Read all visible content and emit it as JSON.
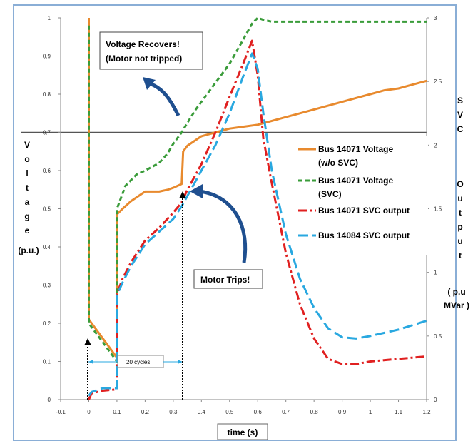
{
  "chart_data": {
    "type": "line",
    "xlabel": "time (s)",
    "ylabel_left_letters": [
      "V",
      "o",
      "l",
      "t",
      "a",
      "g",
      "e"
    ],
    "ylabel_left_unit": "(p.u.)",
    "ylabel_right_letters_1": [
      "S",
      "V",
      "C"
    ],
    "ylabel_right_letters_2": [
      "O",
      "u",
      "t",
      "p",
      "u",
      "t"
    ],
    "ylabel_right_unit_1": "( p.u",
    "ylabel_right_unit_2": "MVar )",
    "xlim": [
      -0.1,
      1.2
    ],
    "ylim_left": [
      0,
      1
    ],
    "ylim_right": [
      0,
      3
    ],
    "x_ticks": [
      "-0.1",
      "0",
      "0.1",
      "0.2",
      "0.3",
      "0.4",
      "0.5",
      "0.6",
      "0.7",
      "0.8",
      "0.9",
      "1",
      "1.1",
      "1.2"
    ],
    "y_left_ticks": [
      "0",
      "0.1",
      "0.2",
      "0.3",
      "0.4",
      "0.5",
      "0.6",
      "0.7",
      "0.8",
      "0.9",
      "1"
    ],
    "y_right_ticks": [
      "0",
      "0.5",
      "1",
      "1.5",
      "2",
      "2.5",
      "3"
    ],
    "reference_line_y": 0.7,
    "legend_position": "right",
    "series": [
      {
        "name": "Bus 14071 Voltage (w/o SVC)",
        "legend_lines": [
          "Bus 14071 Voltage",
          "(w/o SVC)"
        ],
        "axis": "left",
        "color": "#e88a2e",
        "dash": "solid",
        "x": [
          0,
          0,
          0.1,
          0.1,
          0.12,
          0.15,
          0.18,
          0.2,
          0.22,
          0.25,
          0.28,
          0.3,
          0.33,
          0.335,
          0.35,
          0.38,
          0.4,
          0.45,
          0.5,
          0.55,
          0.6,
          0.65,
          0.7,
          0.75,
          0.8,
          0.85,
          0.9,
          0.95,
          1.0,
          1.05,
          1.1,
          1.15,
          1.2
        ],
        "y": [
          1.0,
          0.21,
          0.11,
          0.485,
          0.5,
          0.52,
          0.535,
          0.545,
          0.545,
          0.545,
          0.55,
          0.555,
          0.565,
          0.65,
          0.665,
          0.68,
          0.69,
          0.7,
          0.71,
          0.715,
          0.72,
          0.73,
          0.74,
          0.75,
          0.76,
          0.77,
          0.78,
          0.79,
          0.8,
          0.81,
          0.815,
          0.825,
          0.835
        ]
      },
      {
        "name": "Bus 14071 Voltage (SVC)",
        "legend_lines": [
          "Bus 14071 Voltage",
          "(SVC)"
        ],
        "axis": "left",
        "color": "#3a9c3a",
        "dash": "dashed",
        "x": [
          0,
          0,
          0.1,
          0.1,
          0.13,
          0.17,
          0.2,
          0.25,
          0.28,
          0.3,
          0.33,
          0.35,
          0.38,
          0.4,
          0.42,
          0.45,
          0.5,
          0.55,
          0.58,
          0.6,
          0.62,
          0.65,
          0.7,
          0.8,
          0.9,
          1.0,
          1.1,
          1.2
        ],
        "y": [
          0.98,
          0.2,
          0.1,
          0.5,
          0.56,
          0.59,
          0.6,
          0.62,
          0.645,
          0.67,
          0.7,
          0.725,
          0.76,
          0.78,
          0.8,
          0.83,
          0.88,
          0.945,
          0.985,
          1.0,
          0.995,
          0.99,
          0.99,
          0.99,
          0.99,
          0.99,
          0.99,
          0.99
        ]
      },
      {
        "name": "Bus 14071 SVC output",
        "legend_lines": [
          "Bus 14071 SVC output"
        ],
        "axis": "right",
        "color": "#e02020",
        "dash": "dashdot",
        "x": [
          0,
          0.01,
          0.05,
          0.1,
          0.1,
          0.12,
          0.15,
          0.2,
          0.25,
          0.3,
          0.33,
          0.35,
          0.4,
          0.45,
          0.5,
          0.55,
          0.58,
          0.6,
          0.62,
          0.65,
          0.7,
          0.75,
          0.8,
          0.85,
          0.9,
          0.95,
          1.0,
          1.1,
          1.2
        ],
        "y": [
          0.0,
          0.05,
          0.07,
          0.08,
          0.83,
          0.95,
          1.08,
          1.25,
          1.35,
          1.47,
          1.55,
          1.65,
          1.85,
          2.1,
          2.38,
          2.65,
          2.82,
          2.55,
          2.05,
          1.7,
          1.15,
          0.75,
          0.48,
          0.32,
          0.28,
          0.28,
          0.3,
          0.32,
          0.34
        ]
      },
      {
        "name": "Bus 14084 SVC output",
        "legend_lines": [
          "Bus 14084 SVC output"
        ],
        "axis": "right",
        "color": "#29a8e0",
        "dash": "longdash",
        "x": [
          0,
          0.01,
          0.05,
          0.1,
          0.1,
          0.12,
          0.15,
          0.2,
          0.25,
          0.3,
          0.33,
          0.35,
          0.4,
          0.45,
          0.5,
          0.55,
          0.58,
          0.6,
          0.62,
          0.65,
          0.7,
          0.75,
          0.8,
          0.85,
          0.9,
          0.95,
          1.0,
          1.1,
          1.2
        ],
        "y": [
          0.03,
          0.06,
          0.09,
          0.09,
          0.82,
          0.92,
          1.05,
          1.22,
          1.32,
          1.42,
          1.52,
          1.6,
          1.8,
          2.0,
          2.25,
          2.55,
          2.72,
          2.6,
          2.25,
          1.8,
          1.3,
          0.95,
          0.72,
          0.56,
          0.49,
          0.48,
          0.5,
          0.55,
          0.62
        ]
      }
    ],
    "annotations": {
      "voltage_recovers_1": "Voltage Recovers!",
      "voltage_recovers_2": "(Motor not tripped)",
      "motor_trips": "Motor Trips!",
      "cycles": "20 cycles"
    }
  }
}
